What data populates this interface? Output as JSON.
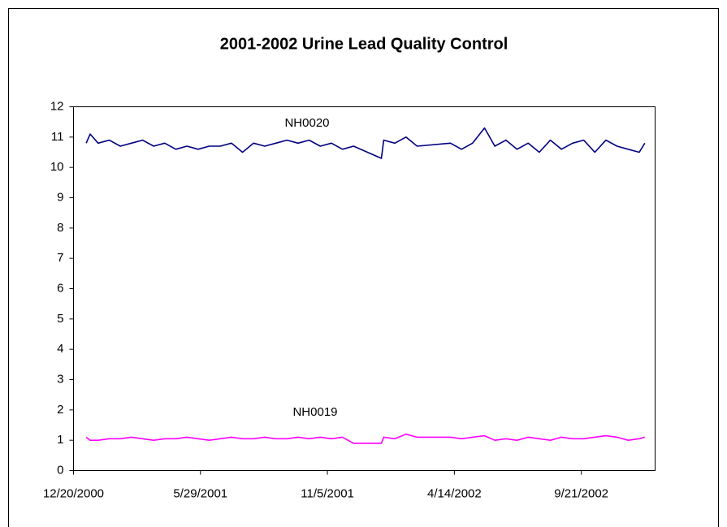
{
  "chart_data": {
    "type": "line",
    "title": "2001-2002 Urine Lead Quality Control",
    "annotations": [
      "NH0020",
      "NH0019"
    ],
    "x": [
      "1/5/2001",
      "1/10/2001",
      "1/20/2001",
      "2/3/2001",
      "2/17/2001",
      "3/3/2001",
      "3/17/2001",
      "3/31/2001",
      "4/14/2001",
      "4/28/2001",
      "5/12/2001",
      "5/26/2001",
      "6/9/2001",
      "6/23/2001",
      "7/7/2001",
      "7/21/2001",
      "8/4/2001",
      "8/18/2001",
      "9/1/2001",
      "9/15/2001",
      "9/29/2001",
      "10/13/2001",
      "10/27/2001",
      "11/10/2001",
      "11/24/2001",
      "12/8/2001",
      "1/12/2002",
      "1/15/2002",
      "1/29/2002",
      "2/12/2002",
      "2/26/2002",
      "4/9/2002",
      "4/23/2002",
      "5/7/2002",
      "5/22/2002",
      "6/4/2002",
      "6/18/2002",
      "7/2/2002",
      "7/16/2002",
      "7/30/2002",
      "8/13/2002",
      "8/27/2002",
      "9/10/2002",
      "9/24/2002",
      "10/8/2002",
      "10/22/2002",
      "11/5/2002",
      "11/19/2002",
      "12/3/2002",
      "12/10/2002"
    ],
    "series": [
      {
        "name": "NH0020",
        "color": "#000080",
        "values": [
          10.8,
          11.1,
          10.8,
          10.9,
          10.7,
          10.8,
          10.9,
          10.7,
          10.8,
          10.6,
          10.7,
          10.6,
          10.7,
          10.7,
          10.8,
          10.5,
          10.8,
          10.7,
          10.8,
          10.9,
          10.8,
          10.9,
          10.7,
          10.8,
          10.6,
          10.7,
          10.3,
          10.9,
          10.8,
          11.0,
          10.7,
          10.8,
          10.6,
          10.8,
          11.3,
          10.7,
          10.9,
          10.6,
          10.8,
          10.5,
          10.9,
          10.6,
          10.8,
          10.9,
          10.5,
          10.9,
          10.7,
          10.6,
          10.5,
          10.8
        ]
      },
      {
        "name": "NH0019",
        "color": "#ff00ff",
        "values": [
          1.1,
          1.0,
          1.0,
          1.05,
          1.05,
          1.1,
          1.05,
          1.0,
          1.05,
          1.05,
          1.1,
          1.05,
          1.0,
          1.05,
          1.1,
          1.05,
          1.05,
          1.1,
          1.05,
          1.05,
          1.1,
          1.05,
          1.1,
          1.05,
          1.1,
          0.9,
          0.9,
          1.1,
          1.05,
          1.2,
          1.1,
          1.1,
          1.05,
          1.1,
          1.15,
          1.0,
          1.05,
          1.0,
          1.1,
          1.05,
          1.0,
          1.1,
          1.05,
          1.05,
          1.1,
          1.15,
          1.1,
          1.0,
          1.05,
          1.1
        ]
      }
    ],
    "xlim": [
      "12/20/2000",
      "12/23/2002"
    ],
    "xticks": [
      "12/20/2000",
      "5/29/2001",
      "11/5/2001",
      "4/14/2002",
      "9/21/2002"
    ],
    "ylim": [
      0,
      12
    ],
    "yticks": [
      0,
      1,
      2,
      3,
      4,
      5,
      6,
      7,
      8,
      9,
      10,
      11,
      12
    ],
    "grid": false
  }
}
